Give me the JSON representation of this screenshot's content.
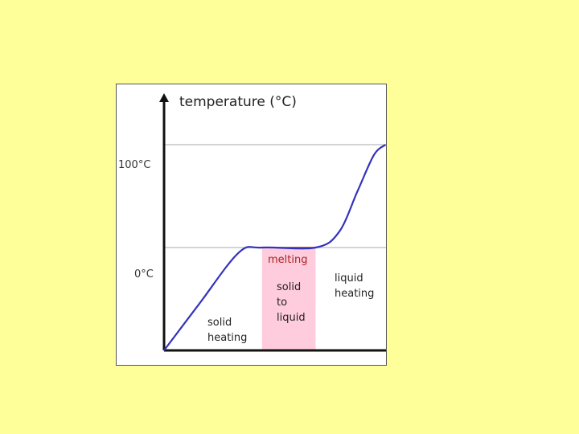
{
  "chart_data": {
    "type": "line",
    "title": "",
    "ylabel": "temperature (°C)",
    "xlabel": "",
    "y_ticks": [
      "100°C",
      "0°C"
    ],
    "ylim": [
      -100,
      160
    ],
    "xlim": [
      0,
      10
    ],
    "grid": "horizontal at 100°C and 0°C",
    "series": [
      {
        "points": [
          [
            0,
            -100
          ],
          [
            1.5,
            -55
          ],
          [
            3.2,
            -5
          ],
          [
            4.2,
            0
          ],
          [
            6.5,
            0
          ],
          [
            7.5,
            15
          ],
          [
            8.3,
            55
          ],
          [
            9.0,
            90
          ],
          [
            9.5,
            100
          ]
        ]
      }
    ],
    "annotations": {
      "melting": "melting",
      "solid_to_liquid": [
        "solid",
        "to",
        "liquid"
      ],
      "solid_heating": [
        "solid",
        "heating"
      ],
      "liquid_heating": [
        "liquid",
        "heating"
      ]
    },
    "colors": {
      "curve": "#3333bb",
      "melting_text": "#aa2222",
      "melting_band": "#ffccdd",
      "melting_line": "#aa2222",
      "axis": "#111111",
      "grid": "#bbbbbb"
    }
  }
}
